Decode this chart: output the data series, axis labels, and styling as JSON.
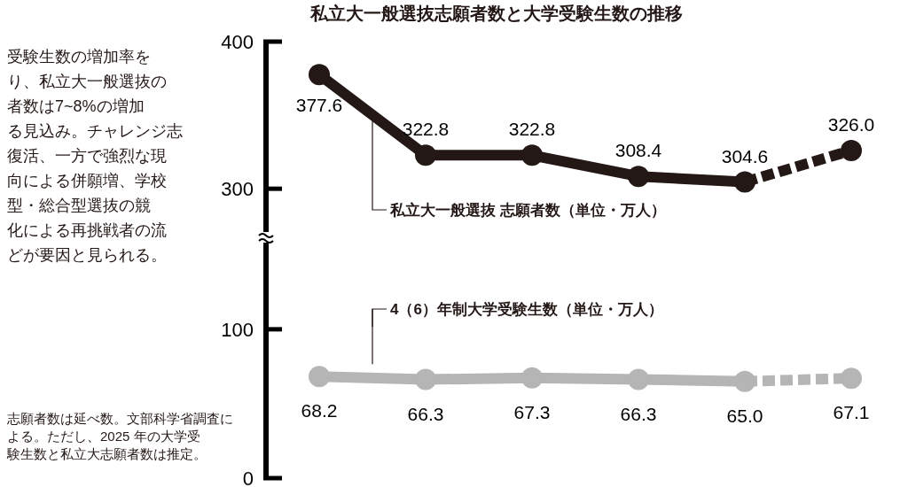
{
  "chart_data": [
    {
      "type": "line",
      "title": "私立大一般選抜志願者数と大学受験生数の推移",
      "annotations": [
        "受験生数の増加率を",
        "り、私立大一般選抜の",
        "者数は7~8%の増加",
        "る見込み。チャレンジ志",
        "復活、一方で強烈な現",
        "向による併願増、学校",
        "型・総合型選抜の競",
        "化による再挑戦者の流",
        "どが要因と見られる。",
        "志願者数は延べ数。文部科学省調査による。ただし、2025 年の大学受験生数と私立大志願者数は推定。"
      ],
      "categories": [
        null,
        null,
        null,
        null,
        null,
        null
      ],
      "ylim": [
        270,
        400
      ],
      "yticks": [
        300,
        400
      ],
      "marker": "circle",
      "series": [
        {
          "name": "私立大一般選抜 志願者数（単位・万人）",
          "color": "#231815",
          "values": [
            377.6,
            322.8,
            322.8,
            308.4,
            304.6,
            null
          ],
          "value_labels": [
            "377.6",
            "322.8",
            "322.8",
            "308.4",
            "304.6",
            null
          ]
        },
        {
          "color": "#231815",
          "line_style": "dashed",
          "values": [
            null,
            null,
            null,
            null,
            304.6,
            326.0
          ],
          "value_labels": [
            null,
            null,
            null,
            null,
            null,
            "326.0"
          ]
        }
      ]
    },
    {
      "type": "line",
      "categories": [
        null,
        null,
        null,
        null,
        null,
        null
      ],
      "ylim": [
        0,
        160
      ],
      "yticks": [
        0,
        100
      ],
      "marker": "circle",
      "series": [
        {
          "name": "4（6）年制大学受験生数（単位・万人）",
          "color": "#b5b5b5",
          "values": [
            68.2,
            66.3,
            67.3,
            66.3,
            65.0,
            null
          ],
          "value_labels": [
            "68.2",
            "66.3",
            "67.3",
            "66.3",
            "65.0",
            null
          ]
        },
        {
          "color": "#b5b5b5",
          "line_style": "dashed",
          "values": [
            null,
            null,
            null,
            null,
            65.0,
            67.1
          ],
          "value_labels": [
            null,
            null,
            null,
            null,
            null,
            "67.1"
          ]
        }
      ]
    }
  ]
}
